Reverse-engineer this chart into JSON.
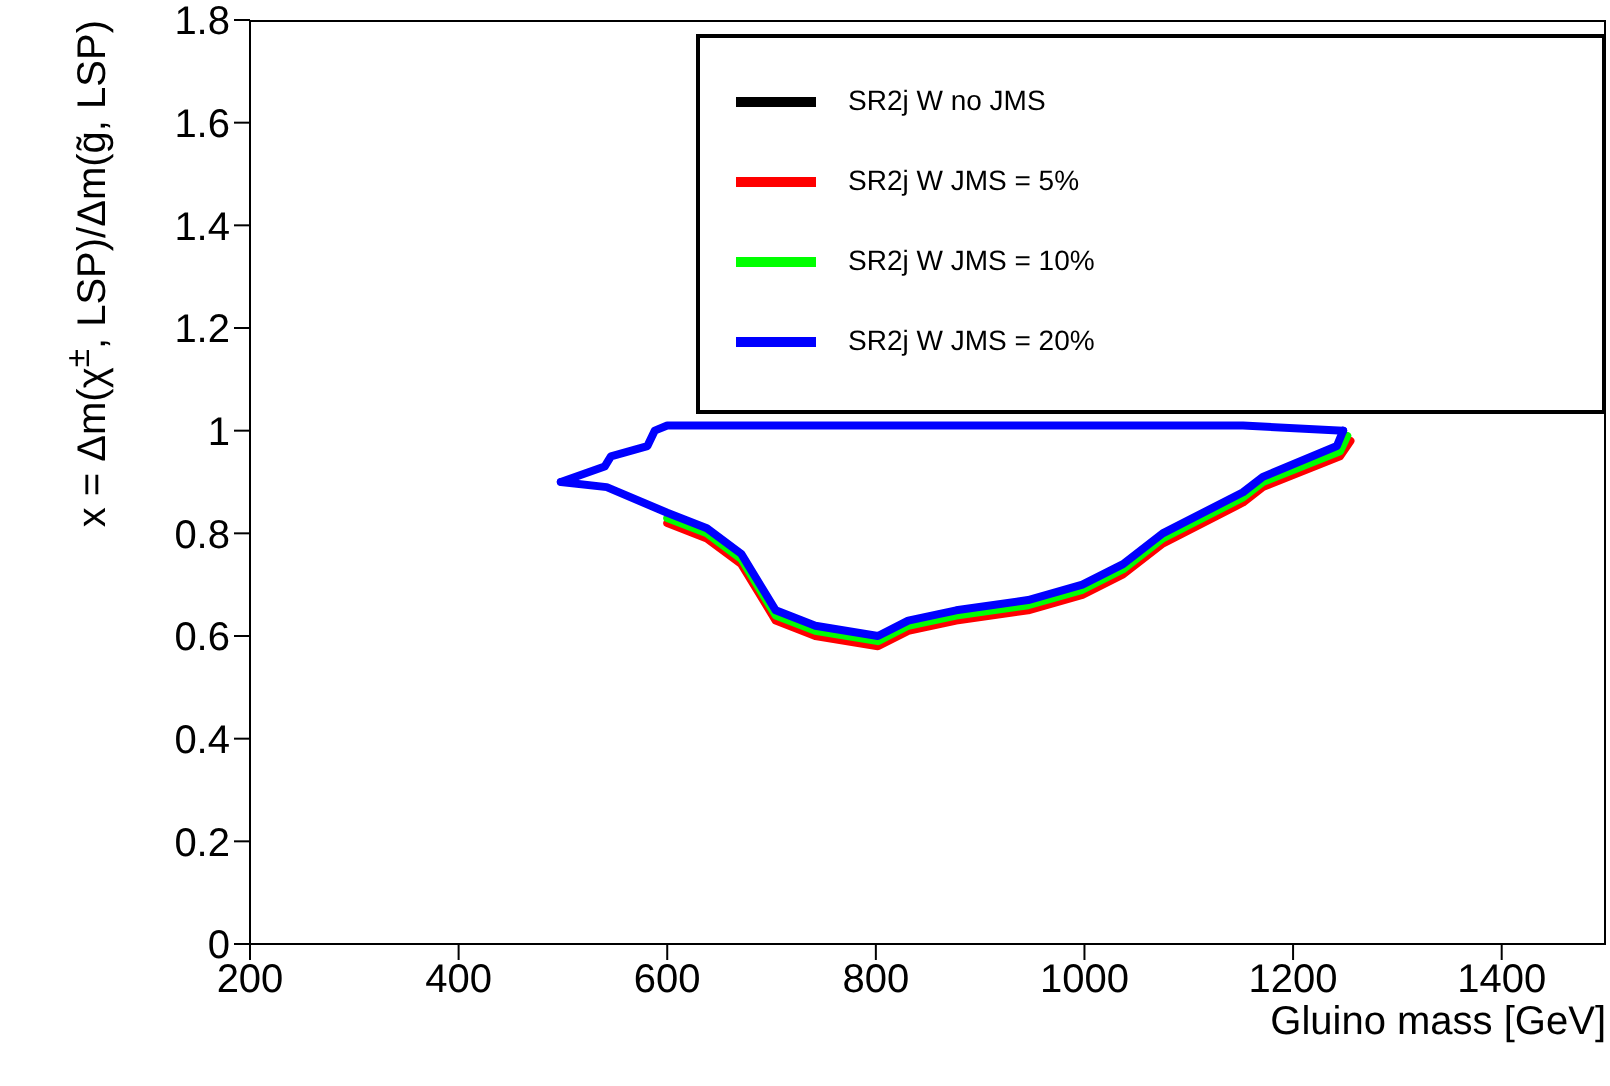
{
  "chart_data": {
    "type": "line",
    "xlabel": "Gluino mass [GeV]",
    "ylabel": "x = Δm(χ$^{±}$, LSP)/Δm(g̃, LSP)",
    "xlim": [
      200,
      1500
    ],
    "xticks": [
      200,
      400,
      600,
      800,
      1000,
      1200,
      1400
    ],
    "ylim": [
      0,
      1.8
    ],
    "yticks": [
      0,
      0.2,
      0.4,
      0.6,
      0.8,
      1,
      1.2,
      1.4,
      1.6,
      1.8
    ],
    "grid": false,
    "legend": "top right",
    "marker": "none",
    "line_style": "solid",
    "series": [
      {
        "name": "SR2j W no JMS",
        "color": "#000000"
      },
      {
        "name": "SR2j W JMS = 5%",
        "color": "#ff0000",
        "x": [
          600,
          638,
          671,
          704,
          742,
          802,
          831,
          877,
          946,
          998,
          1037,
          1075,
          1152,
          1171,
          1245,
          1255
        ],
        "values": [
          0.82,
          0.79,
          0.74,
          0.63,
          0.6,
          0.58,
          0.61,
          0.63,
          0.65,
          0.68,
          0.72,
          0.78,
          0.86,
          0.89,
          0.95,
          0.98
        ]
      },
      {
        "name": "SR2j W JMS = 10%",
        "color": "#00ff00",
        "x": [
          600,
          638,
          671,
          704,
          742,
          802,
          831,
          877,
          946,
          998,
          1037,
          1075,
          1152,
          1171,
          1245,
          1252
        ],
        "values": [
          0.83,
          0.8,
          0.75,
          0.64,
          0.61,
          0.59,
          0.62,
          0.64,
          0.66,
          0.69,
          0.73,
          0.79,
          0.87,
          0.9,
          0.96,
          0.99
        ]
      },
      {
        "name": "SR2j W JMS = 20%",
        "color": "#0000ff",
        "x": [
          498,
          542,
          600,
          638,
          671,
          704,
          742,
          802,
          831,
          877,
          946,
          998,
          1037,
          1075,
          1152,
          1171,
          1242,
          1248
        ],
        "values": [
          0.9,
          0.89,
          0.84,
          0.81,
          0.76,
          0.65,
          0.62,
          0.6,
          0.63,
          0.65,
          0.67,
          0.7,
          0.74,
          0.8,
          0.88,
          0.91,
          0.97,
          1.0
        ]
      },
      {
        "color": "#0000ff",
        "x": [
          498,
          540,
          546,
          581,
          588,
          600,
          1152,
          1248
        ],
        "values": [
          0.9,
          0.93,
          0.95,
          0.97,
          1.0,
          1.01,
          1.01,
          1.0
        ]
      }
    ]
  }
}
